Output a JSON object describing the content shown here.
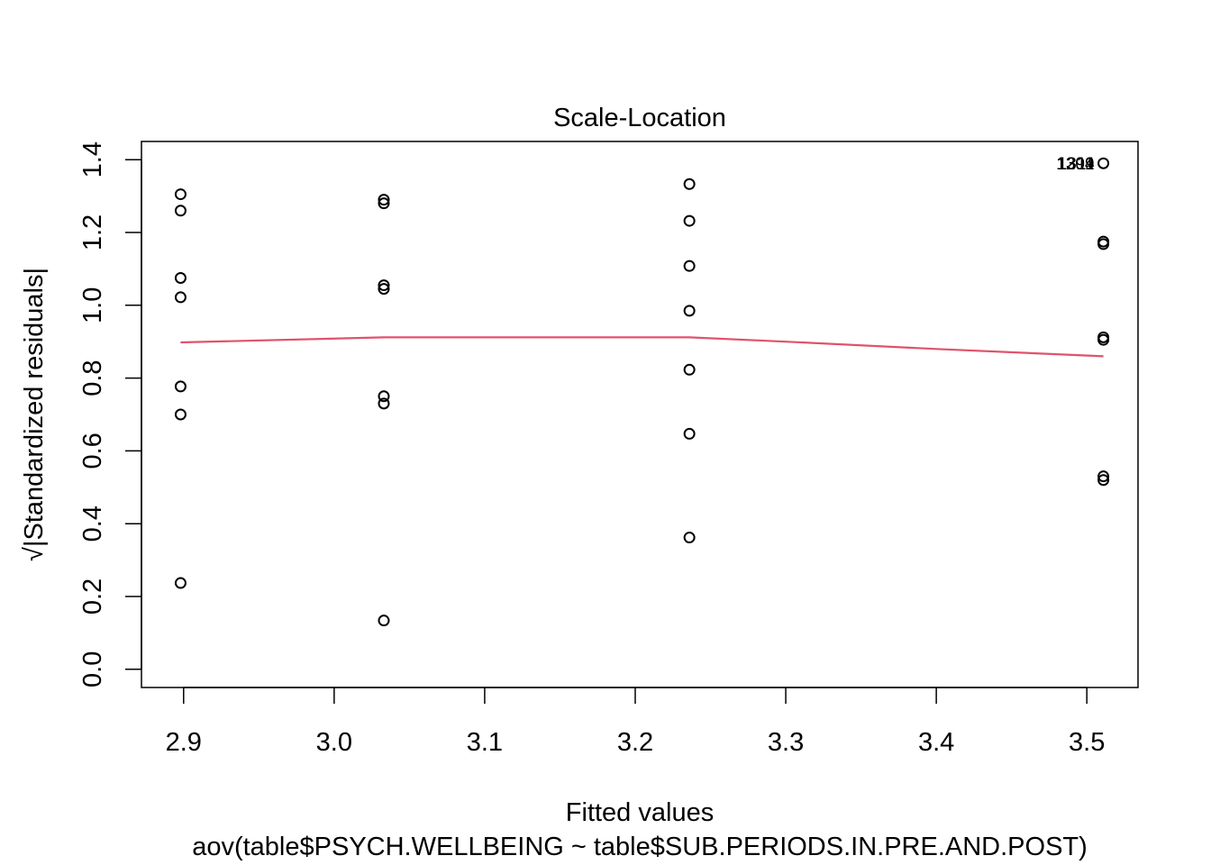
{
  "chart_data": {
    "type": "scatter",
    "title": "Scale-Location",
    "xlabel": "Fitted values",
    "sublabel": "aov(table$PSYCH.WELLBEING ~ table$SUB.PERIODS.IN.PRE.AND.POST)",
    "ylabel": "Standardized residuals",
    "ylabel_prefix": "√",
    "xlim": [
      2.872,
      3.534
    ],
    "ylim": [
      -0.05,
      1.45
    ],
    "xticks": [
      2.9,
      3.0,
      3.1,
      3.2,
      3.3,
      3.4,
      3.5
    ],
    "xtick_labels": [
      "2.9",
      "3.0",
      "3.1",
      "3.2",
      "3.3",
      "3.4",
      "3.5"
    ],
    "yticks": [
      0.0,
      0.2,
      0.4,
      0.6,
      0.8,
      1.0,
      1.2,
      1.4
    ],
    "ytick_labels": [
      "0.0",
      "0.2",
      "0.4",
      "0.6",
      "0.8",
      "1.0",
      "1.2",
      "1.4"
    ],
    "grid": false,
    "series": [
      {
        "marker": "open-circle",
        "color": "#000000",
        "points": [
          {
            "x": 2.898,
            "y": 1.305
          },
          {
            "x": 2.898,
            "y": 1.26
          },
          {
            "x": 2.898,
            "y": 1.075
          },
          {
            "x": 2.898,
            "y": 1.022
          },
          {
            "x": 2.898,
            "y": 0.777
          },
          {
            "x": 2.898,
            "y": 0.7
          },
          {
            "x": 2.898,
            "y": 0.237
          },
          {
            "x": 3.033,
            "y": 1.29
          },
          {
            "x": 3.033,
            "y": 1.28
          },
          {
            "x": 3.033,
            "y": 1.055
          },
          {
            "x": 3.033,
            "y": 1.045
          },
          {
            "x": 3.033,
            "y": 0.75
          },
          {
            "x": 3.033,
            "y": 0.73
          },
          {
            "x": 3.033,
            "y": 0.134
          },
          {
            "x": 3.236,
            "y": 1.333
          },
          {
            "x": 3.236,
            "y": 1.232
          },
          {
            "x": 3.236,
            "y": 1.108
          },
          {
            "x": 3.236,
            "y": 0.985
          },
          {
            "x": 3.236,
            "y": 0.823
          },
          {
            "x": 3.236,
            "y": 0.647
          },
          {
            "x": 3.236,
            "y": 0.362
          },
          {
            "x": 3.511,
            "y": 1.39
          },
          {
            "x": 3.511,
            "y": 1.175
          },
          {
            "x": 3.511,
            "y": 1.168
          },
          {
            "x": 3.511,
            "y": 0.912
          },
          {
            "x": 3.511,
            "y": 0.905
          },
          {
            "x": 3.511,
            "y": 0.53
          },
          {
            "x": 3.511,
            "y": 0.52
          }
        ]
      },
      {
        "type": "line",
        "color": "#DF536B",
        "points": [
          {
            "x": 2.898,
            "y": 0.898
          },
          {
            "x": 3.033,
            "y": 0.912
          },
          {
            "x": 3.236,
            "y": 0.912
          },
          {
            "x": 3.3,
            "y": 0.9
          },
          {
            "x": 3.4,
            "y": 0.88
          },
          {
            "x": 3.511,
            "y": 0.86
          }
        ]
      }
    ],
    "annotations": [
      {
        "text": "1309",
        "x": 3.511,
        "y": 1.39
      },
      {
        "text": "1311",
        "x": 3.511,
        "y": 1.39
      },
      {
        "text": "1294",
        "x": 3.511,
        "y": 1.39
      }
    ]
  }
}
